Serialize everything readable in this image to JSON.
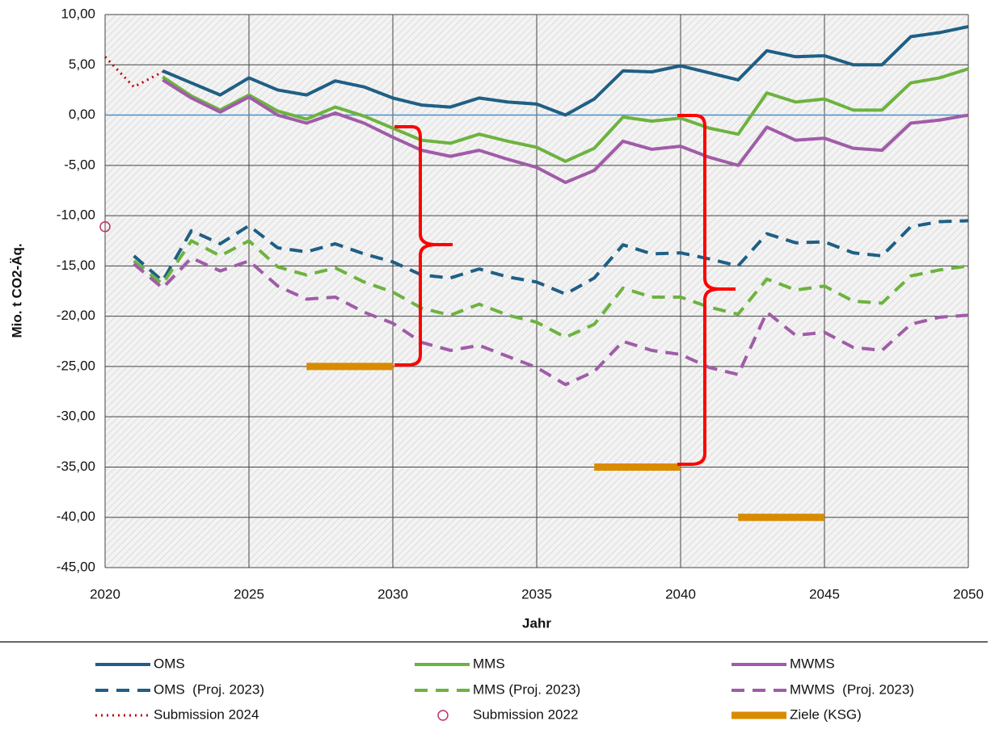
{
  "chart_data": {
    "type": "line",
    "x_label": "Jahr",
    "y_label": "Mio. t CO2-Äq.",
    "xlim": [
      2020,
      2050
    ],
    "xticks": [
      2020,
      2025,
      2030,
      2035,
      2040,
      2045,
      2050
    ],
    "ylim": [
      -45,
      10
    ],
    "yticks": [
      {
        "value": 10,
        "label": "10,00"
      },
      {
        "value": 5,
        "label": "5,00"
      },
      {
        "value": 0,
        "label": "0,00"
      },
      {
        "value": -5,
        "label": "-5,00"
      },
      {
        "value": -10,
        "label": "-10,00"
      },
      {
        "value": -15,
        "label": "-15,00"
      },
      {
        "value": -20,
        "label": "-20,00"
      },
      {
        "value": -25,
        "label": "-25,00"
      },
      {
        "value": -30,
        "label": "-30,00"
      },
      {
        "value": -35,
        "label": "-35,00"
      },
      {
        "value": -40,
        "label": "-40,00"
      },
      {
        "value": -45,
        "label": "-45,00"
      }
    ],
    "grid": true,
    "zero_line_color": "#4a90c8",
    "legend": "bottom",
    "series": [
      {
        "name": "OMS",
        "color": "#1f5f85",
        "style": "solid",
        "x": [
          2022,
          2023,
          2024,
          2025,
          2026,
          2027,
          2028,
          2029,
          2030,
          2031,
          2032,
          2033,
          2034,
          2035,
          2036,
          2037,
          2038,
          2039,
          2040,
          2041,
          2042,
          2043,
          2044,
          2045,
          2046,
          2047,
          2048,
          2049,
          2050
        ],
        "values": [
          4.4,
          3.2,
          2.0,
          3.7,
          2.5,
          2.0,
          3.4,
          2.8,
          1.7,
          1.0,
          0.8,
          1.7,
          1.3,
          1.1,
          0.0,
          1.6,
          4.4,
          4.3,
          4.9,
          4.2,
          3.5,
          6.4,
          5.8,
          5.9,
          5.0,
          5.0,
          7.8,
          8.2,
          8.8
        ]
      },
      {
        "name": "MMS",
        "color": "#6db33f",
        "style": "solid",
        "x": [
          2022,
          2023,
          2024,
          2025,
          2026,
          2027,
          2028,
          2029,
          2030,
          2031,
          2032,
          2033,
          2034,
          2035,
          2036,
          2037,
          2038,
          2039,
          2040,
          2041,
          2042,
          2043,
          2044,
          2045,
          2046,
          2047,
          2048,
          2049,
          2050
        ],
        "values": [
          3.8,
          1.9,
          0.5,
          2.0,
          0.4,
          -0.4,
          0.8,
          -0.1,
          -1.3,
          -2.5,
          -2.8,
          -1.9,
          -2.6,
          -3.2,
          -4.6,
          -3.3,
          -0.2,
          -0.6,
          -0.3,
          -1.3,
          -1.9,
          2.2,
          1.3,
          1.6,
          0.5,
          0.5,
          3.2,
          3.7,
          4.6
        ]
      },
      {
        "name": "MWMS",
        "color": "#a05ca8",
        "style": "solid",
        "x": [
          2022,
          2023,
          2024,
          2025,
          2026,
          2027,
          2028,
          2029,
          2030,
          2031,
          2032,
          2033,
          2034,
          2035,
          2036,
          2037,
          2038,
          2039,
          2040,
          2041,
          2042,
          2043,
          2044,
          2045,
          2046,
          2047,
          2048,
          2049,
          2050
        ],
        "values": [
          3.5,
          1.7,
          0.3,
          1.8,
          0.0,
          -0.8,
          0.2,
          -0.8,
          -2.2,
          -3.5,
          -4.1,
          -3.5,
          -4.4,
          -5.2,
          -6.7,
          -5.5,
          -2.6,
          -3.4,
          -3.1,
          -4.2,
          -5.0,
          -1.2,
          -2.5,
          -2.3,
          -3.3,
          -3.5,
          -0.8,
          -0.5,
          0.0
        ]
      },
      {
        "name": "OMS  (Proj. 2023)",
        "color": "#1f5f85",
        "style": "dashed",
        "x": [
          2021,
          2022,
          2023,
          2024,
          2025,
          2026,
          2027,
          2028,
          2029,
          2030,
          2031,
          2032,
          2033,
          2034,
          2035,
          2036,
          2037,
          2038,
          2039,
          2040,
          2041,
          2042,
          2043,
          2044,
          2045,
          2046,
          2047,
          2048,
          2049,
          2050
        ],
        "values": [
          -14.0,
          -16.5,
          -11.5,
          -12.8,
          -11.0,
          -13.2,
          -13.6,
          -12.8,
          -13.8,
          -14.6,
          -15.9,
          -16.2,
          -15.3,
          -16.1,
          -16.6,
          -17.8,
          -16.2,
          -12.9,
          -13.8,
          -13.7,
          -14.3,
          -15.0,
          -11.8,
          -12.7,
          -12.6,
          -13.7,
          -14.0,
          -11.1,
          -10.6,
          -10.5
        ]
      },
      {
        "name": "MMS (Proj. 2023)",
        "color": "#6db33f",
        "style": "dashed",
        "x": [
          2021,
          2022,
          2023,
          2024,
          2025,
          2026,
          2027,
          2028,
          2029,
          2030,
          2031,
          2032,
          2033,
          2034,
          2035,
          2036,
          2037,
          2038,
          2039,
          2040,
          2041,
          2042,
          2043,
          2044,
          2045,
          2046,
          2047,
          2048,
          2049,
          2050
        ],
        "values": [
          -14.5,
          -16.8,
          -12.5,
          -14.0,
          -12.5,
          -15.1,
          -15.9,
          -15.2,
          -16.6,
          -17.6,
          -19.2,
          -19.9,
          -18.8,
          -19.9,
          -20.6,
          -22.1,
          -20.8,
          -17.2,
          -18.1,
          -18.1,
          -19.1,
          -19.8,
          -16.3,
          -17.4,
          -17.0,
          -18.5,
          -18.7,
          -16.0,
          -15.4,
          -15.0
        ]
      },
      {
        "name": "MWMS  (Proj. 2023)",
        "color": "#a05ca8",
        "style": "dashed",
        "x": [
          2021,
          2022,
          2023,
          2024,
          2025,
          2026,
          2027,
          2028,
          2029,
          2030,
          2031,
          2032,
          2033,
          2034,
          2035,
          2036,
          2037,
          2038,
          2039,
          2040,
          2041,
          2042,
          2043,
          2044,
          2045,
          2046,
          2047,
          2048,
          2049,
          2050
        ],
        "values": [
          -14.8,
          -17.2,
          -14.2,
          -15.5,
          -14.5,
          -17.0,
          -18.3,
          -18.1,
          -19.6,
          -20.7,
          -22.6,
          -23.4,
          -22.9,
          -24.0,
          -25.1,
          -26.8,
          -25.5,
          -22.5,
          -23.4,
          -23.8,
          -25.1,
          -25.8,
          -19.6,
          -21.9,
          -21.6,
          -23.1,
          -23.4,
          -20.8,
          -20.1,
          -19.9
        ]
      },
      {
        "name": "Submission 2024",
        "color": "#c00000",
        "style": "dotted",
        "x": [
          2020,
          2021,
          2022
        ],
        "values": [
          5.8,
          2.8,
          4.3
        ]
      },
      {
        "name": "Submission 2022",
        "color": "#c0306a",
        "style": "marker",
        "x": [
          2020
        ],
        "values": [
          -11.1
        ]
      },
      {
        "name": "Ziele (KSG)",
        "color": "#d98b00",
        "style": "target",
        "segments": [
          {
            "x": [
              2027,
              2030
            ],
            "value": -25
          },
          {
            "x": [
              2037,
              2040
            ],
            "value": -35
          },
          {
            "x": [
              2042,
              2045
            ],
            "value": -40
          }
        ]
      }
    ]
  }
}
